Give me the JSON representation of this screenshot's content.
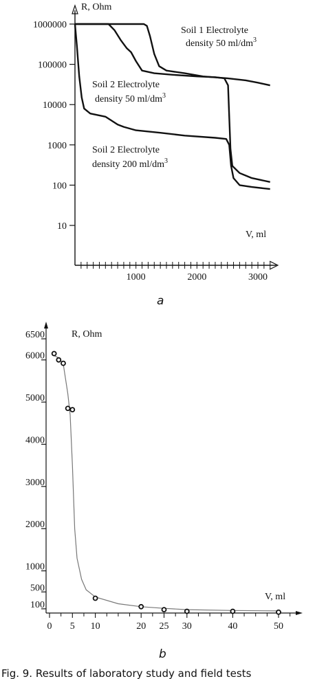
{
  "chart_data": [
    {
      "type": "line",
      "panel": "a",
      "ylabel": "R, Ohm",
      "xlabel": "V, ml",
      "yscale": "log",
      "ylim": [
        10,
        1000000
      ],
      "xlim": [
        0,
        3000
      ],
      "y_ticks": [
        "10",
        "100",
        "1000",
        "10000",
        "100000",
        "1000000"
      ],
      "x_ticks": [
        "1000",
        "2000",
        "3000"
      ],
      "grid": false,
      "series": [
        {
          "name": "Soil 1 Electrolyte density 50 ml/dm3",
          "points": [
            [
              0,
              1000000
            ],
            [
              1130,
              1000000
            ],
            [
              1180,
              900000
            ],
            [
              1230,
              500000
            ],
            [
              1300,
              180000
            ],
            [
              1380,
              90000
            ],
            [
              1500,
              70000
            ],
            [
              1800,
              60000
            ],
            [
              2100,
              50000
            ],
            [
              2500,
              45000
            ],
            [
              2800,
              40000
            ],
            [
              3000,
              35000
            ],
            [
              3200,
              30000
            ]
          ]
        },
        {
          "name": "Soil 2 Electrolyte density 50 ml/dm3",
          "points": [
            [
              0,
              1000000
            ],
            [
              550,
              1000000
            ],
            [
              650,
              700000
            ],
            [
              750,
              400000
            ],
            [
              850,
              250000
            ],
            [
              920,
              200000
            ],
            [
              1000,
              120000
            ],
            [
              1100,
              70000
            ],
            [
              1300,
              60000
            ],
            [
              1600,
              55000
            ],
            [
              2000,
              50000
            ],
            [
              2300,
              48000
            ],
            [
              2450,
              45000
            ],
            [
              2510,
              30000
            ],
            [
              2530,
              5000
            ],
            [
              2550,
              800
            ],
            [
              2580,
              300
            ],
            [
              2700,
              200
            ],
            [
              2900,
              150
            ],
            [
              3200,
              120
            ]
          ]
        },
        {
          "name": "Soil 2 Electrolyte density 200 ml/dm3",
          "points": [
            [
              0,
              1000000
            ],
            [
              30,
              300000
            ],
            [
              70,
              50000
            ],
            [
              110,
              15000
            ],
            [
              150,
              8000
            ],
            [
              250,
              6000
            ],
            [
              500,
              5000
            ],
            [
              600,
              4000
            ],
            [
              700,
              3200
            ],
            [
              800,
              2800
            ],
            [
              1000,
              2300
            ],
            [
              1400,
              2000
            ],
            [
              1800,
              1700
            ],
            [
              2300,
              1500
            ],
            [
              2480,
              1400
            ],
            [
              2530,
              1000
            ],
            [
              2560,
              300
            ],
            [
              2600,
              150
            ],
            [
              2700,
              100
            ],
            [
              2900,
              90
            ],
            [
              3200,
              80
            ]
          ]
        }
      ],
      "annotations": [
        {
          "text": "Soil 1 Electrolyte",
          "sub": "density 50 ml/dm",
          "sup": "3"
        },
        {
          "text": "Soil 2 Electrolyte",
          "sub": "density 50 ml/dm",
          "sup": "3"
        },
        {
          "text": "Soil 2 Electrolyte",
          "sub": "density 200 ml/dm",
          "sup": "3"
        }
      ],
      "panel_label": "a"
    },
    {
      "type": "scatter",
      "panel": "b",
      "ylabel": "R, Ohm",
      "xlabel": "V, ml",
      "xlim": [
        0,
        55
      ],
      "ylim": [
        0,
        6800
      ],
      "y_ticks": [
        "100",
        "500",
        "1000",
        "2000",
        "3000",
        "4000",
        "5000",
        "6000",
        "6500"
      ],
      "y_tick_values": [
        100,
        500,
        1000,
        2000,
        3000,
        4000,
        5000,
        6000,
        6500
      ],
      "x_ticks": [
        "0",
        "5",
        "10",
        "20",
        "25",
        "30",
        "40",
        "50"
      ],
      "x_tick_values": [
        0,
        5,
        10,
        20,
        25,
        30,
        40,
        50
      ],
      "grid": false,
      "points": [
        [
          1,
          6150
        ],
        [
          2,
          6000
        ],
        [
          3,
          5920
        ],
        [
          4,
          4850
        ],
        [
          5,
          4820
        ],
        [
          10,
          350
        ],
        [
          20,
          150
        ],
        [
          25,
          80
        ],
        [
          30,
          40
        ],
        [
          40,
          40
        ],
        [
          50,
          20
        ]
      ],
      "fit_curve": [
        [
          1,
          6100
        ],
        [
          2,
          6050
        ],
        [
          3,
          5900
        ],
        [
          4,
          5200
        ],
        [
          4.5,
          4700
        ],
        [
          5,
          3500
        ],
        [
          5.5,
          2000
        ],
        [
          6,
          1300
        ],
        [
          7,
          800
        ],
        [
          8,
          550
        ],
        [
          10,
          380
        ],
        [
          15,
          220
        ],
        [
          20,
          150
        ],
        [
          25,
          110
        ],
        [
          30,
          80
        ],
        [
          40,
          60
        ],
        [
          50,
          50
        ]
      ],
      "panel_label": "b"
    }
  ],
  "caption": "Fig. 9. Results of laboratory study and field tests"
}
